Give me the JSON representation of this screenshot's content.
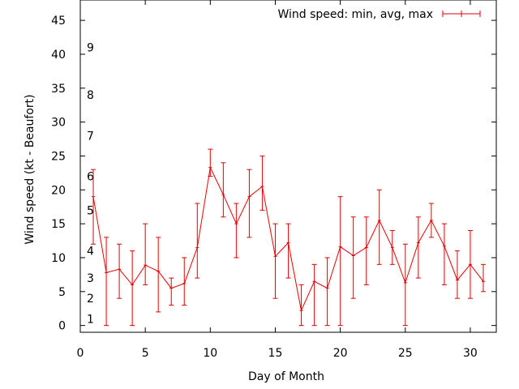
{
  "chart_data": {
    "type": "line",
    "xlabel": "Day of Month",
    "ylabel": "Wind speed (kt - Beaufort)",
    "xlim": [
      0,
      32
    ],
    "ylim": [
      -1,
      48
    ],
    "xticks": [
      0,
      5,
      10,
      15,
      20,
      25,
      30
    ],
    "yticks": [
      0,
      5,
      10,
      15,
      20,
      25,
      30,
      35,
      40,
      45
    ],
    "grid": false,
    "legend_position": "top-right",
    "series_color": "#e00000",
    "series": [
      {
        "name": "Wind speed: min, avg, max",
        "x": [
          1,
          2,
          3,
          4,
          5,
          6,
          7,
          8,
          9,
          10,
          11,
          12,
          13,
          14,
          15,
          16,
          17,
          18,
          19,
          20,
          21,
          22,
          23,
          24,
          25,
          26,
          27,
          28,
          29,
          30,
          31
        ],
        "avg": [
          19,
          7.8,
          8.3,
          6,
          8.9,
          8,
          5.5,
          6.2,
          11.5,
          23.3,
          19.3,
          15,
          19,
          20.5,
          10.2,
          12.2,
          2.2,
          6.5,
          5.5,
          11.6,
          10.3,
          11.5,
          15.5,
          11.5,
          6.3,
          12.2,
          15.5,
          11.7,
          6.7,
          9,
          6.5
        ],
        "min": [
          12,
          0,
          4,
          0,
          6,
          2,
          3,
          3,
          7,
          22,
          16,
          10,
          13,
          17,
          4,
          7,
          0,
          0,
          0,
          0,
          4,
          6,
          9,
          9,
          0,
          7,
          13,
          6,
          4,
          4,
          5
        ],
        "max": [
          23,
          13,
          12,
          11,
          15,
          13,
          7,
          10,
          18,
          26,
          24,
          18,
          23,
          25,
          15,
          15,
          6,
          9,
          10,
          19,
          16,
          16,
          20,
          14,
          12,
          16,
          18,
          15,
          11,
          14,
          9
        ]
      }
    ],
    "beaufort_labels": [
      {
        "label": "1",
        "y": 1
      },
      {
        "label": "2",
        "y": 4
      },
      {
        "label": "3",
        "y": 7
      },
      {
        "label": "4",
        "y": 11
      },
      {
        "label": "5",
        "y": 17
      },
      {
        "label": "6",
        "y": 22
      },
      {
        "label": "7",
        "y": 28
      },
      {
        "label": "8",
        "y": 34
      },
      {
        "label": "9",
        "y": 41
      }
    ]
  }
}
